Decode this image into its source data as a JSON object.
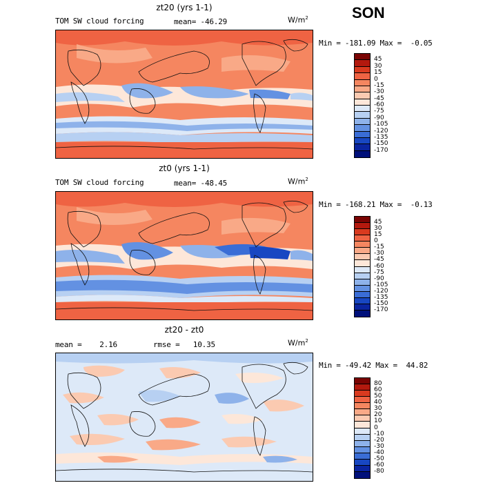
{
  "season": "SON",
  "units_base": "W/m",
  "units_exp": "2",
  "panels": [
    {
      "title": "zt20 (yrs 1-1)",
      "label_left": "TOM SW cloud forcing",
      "label_mid": "mean= -46.29",
      "minmax": "Min = -181.09 Max =  -0.05",
      "levels": [
        "45",
        "30",
        "15",
        "0",
        "-15",
        "-30",
        "-45",
        "-60",
        "-75",
        "-90",
        "-105",
        "-120",
        "-135",
        "-150",
        "-170"
      ],
      "colors": [
        "#7a0403",
        "#b3190e",
        "#d93a1f",
        "#ef6343",
        "#f58660",
        "#f9a987",
        "#fbcab1",
        "#fde7d9",
        "#dde9f8",
        "#b7d0f2",
        "#8eb2ea",
        "#6391e2",
        "#3a6dd6",
        "#1847c2",
        "#0a24a0",
        "#00107a"
      ]
    },
    {
      "title": "zt0 (yrs 1-1)",
      "label_left": "TOM SW cloud forcing",
      "label_mid": "mean= -48.45",
      "minmax": "Min = -168.21 Max =  -0.13",
      "levels": [
        "45",
        "30",
        "15",
        "0",
        "-15",
        "-30",
        "-45",
        "-60",
        "-75",
        "-90",
        "-105",
        "-120",
        "-135",
        "-150",
        "-170"
      ],
      "colors": [
        "#7a0403",
        "#b3190e",
        "#d93a1f",
        "#ef6343",
        "#f58660",
        "#f9a987",
        "#fbcab1",
        "#fde7d9",
        "#dde9f8",
        "#b7d0f2",
        "#8eb2ea",
        "#6391e2",
        "#3a6dd6",
        "#1847c2",
        "#0a24a0",
        "#00107a"
      ]
    },
    {
      "title": "zt20 - zt0",
      "label_left": "mean =    2.16",
      "label_mid": "rmse =   10.35",
      "minmax": "Min = -49.42 Max =  44.82",
      "levels": [
        "80",
        "60",
        "50",
        "40",
        "30",
        "20",
        "10",
        "0",
        "-10",
        "-20",
        "-30",
        "-40",
        "-50",
        "-60",
        "-80"
      ],
      "colors": [
        "#7a0403",
        "#b3190e",
        "#d93a1f",
        "#ef6343",
        "#f58660",
        "#f9a987",
        "#fbcab1",
        "#fde7d9",
        "#dde9f8",
        "#b7d0f2",
        "#8eb2ea",
        "#6391e2",
        "#3a6dd6",
        "#1847c2",
        "#0a24a0",
        "#00107a"
      ]
    }
  ]
}
